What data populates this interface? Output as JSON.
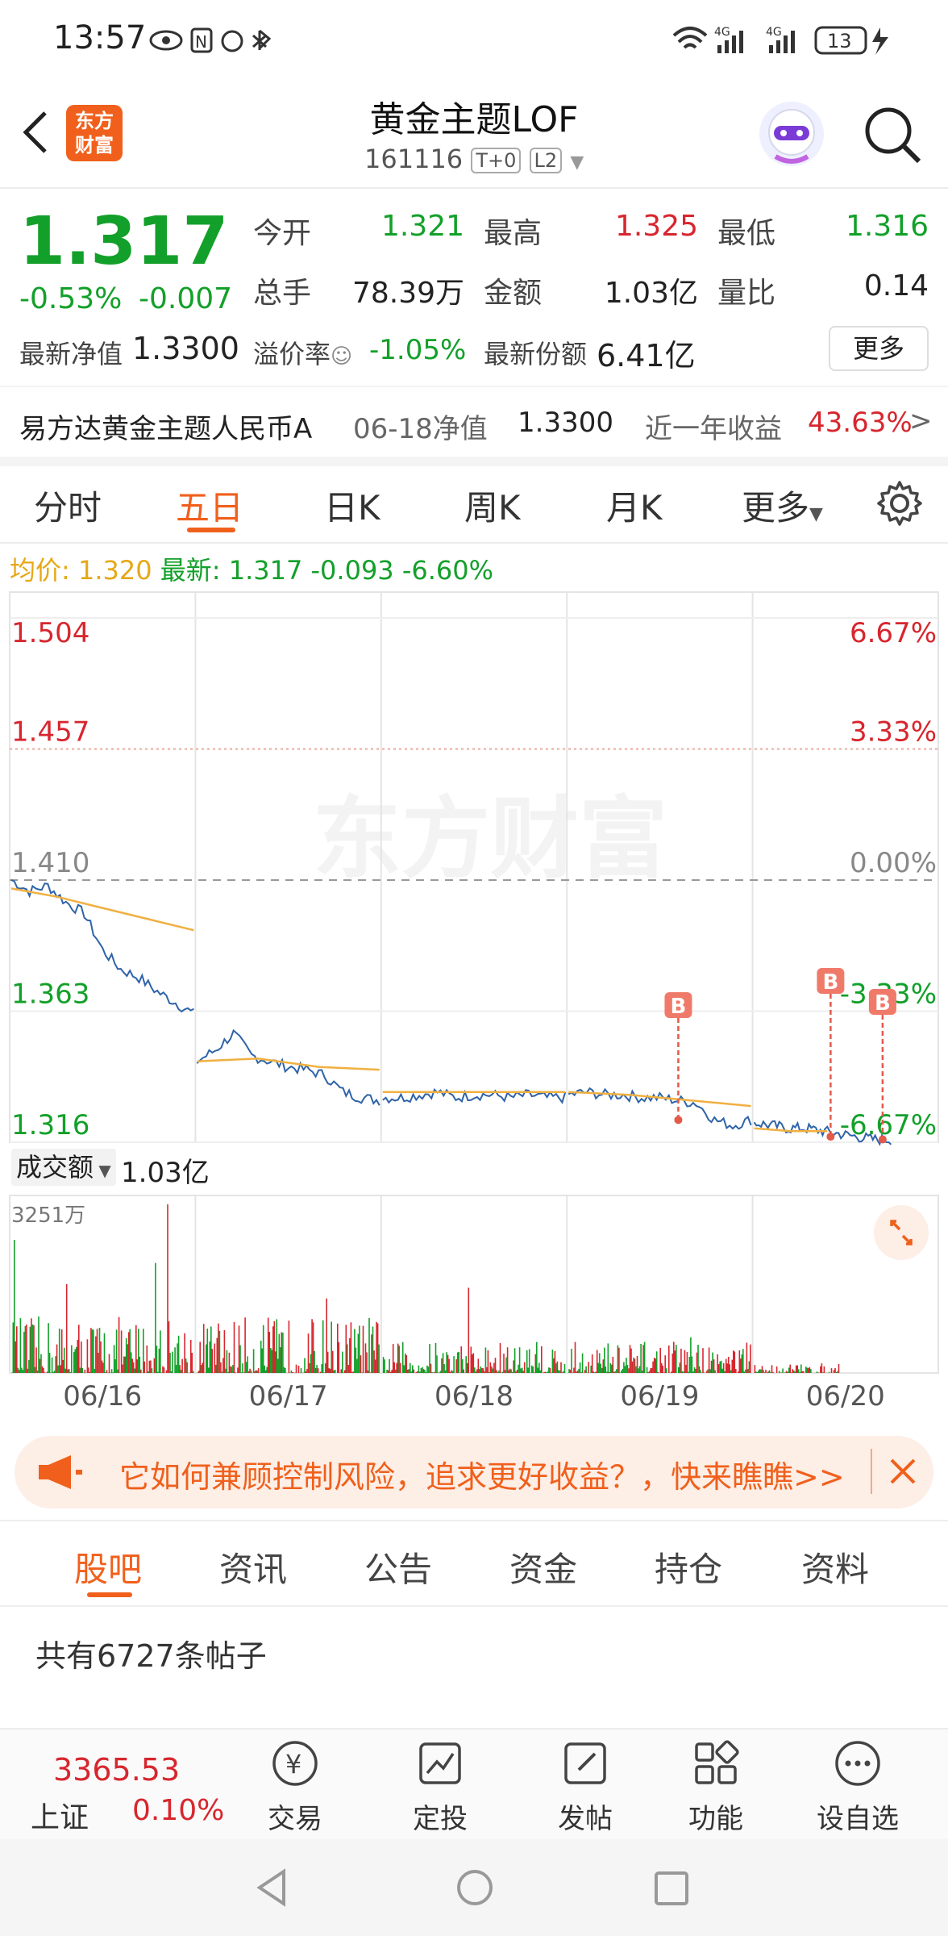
{
  "status_bar": {
    "time": "13:57",
    "battery": "13",
    "network_1": "4G",
    "network_2": "4G"
  },
  "header": {
    "title": "黄金主题LOF",
    "code": "161116",
    "tag_t0": "T+0",
    "tag_l2": "L2",
    "logo_line1": "东方",
    "logo_line2": "财富"
  },
  "quote": {
    "price": "1.317",
    "change_pct": "-0.53%",
    "change_abs": "-0.007",
    "open_label": "今开",
    "open": "1.321",
    "high_label": "最高",
    "high": "1.325",
    "low_label": "最低",
    "low": "1.316",
    "volume_label": "总手",
    "volume": "78.39万",
    "amount_label": "金额",
    "amount": "1.03亿",
    "ratio_label": "量比",
    "ratio": "0.14",
    "nav_label": "最新净值",
    "nav": "1.3300",
    "premium_label": "溢价率",
    "premium": "-1.05%",
    "shares_label": "最新份额",
    "shares": "6.41亿",
    "more_button": "更多"
  },
  "fund_info": {
    "name": "易方达黄金主题人民币A",
    "date_nav_label": "06-18净值",
    "date_nav": "1.3300",
    "year_return_label": "近一年收益",
    "year_return": "43.63%",
    "arrow": ">"
  },
  "chart_tabs": {
    "t1": "分时",
    "t2": "五日",
    "t3": "日K",
    "t4": "周K",
    "t5": "月K",
    "t6": "更多"
  },
  "chart_header": {
    "avg_label": "均价:",
    "avg": "1.320",
    "latest_label": "最新:",
    "latest": "1.317",
    "chg": "-0.093",
    "chg_pct": "-6.60%"
  },
  "chart_data": {
    "type": "line",
    "x_labels": [
      "06/16",
      "06/17",
      "06/18",
      "06/19",
      "06/20"
    ],
    "y_labels_left": [
      "1.504",
      "1.457",
      "1.410",
      "1.363",
      "1.316"
    ],
    "y_labels_right": [
      "6.67%",
      "3.33%",
      "0.00%",
      "-3.33%",
      "-6.67%"
    ],
    "ylim": [
      1.316,
      1.504
    ],
    "watermark": "东方财富",
    "markers": [
      "B",
      "B",
      "B"
    ],
    "series": [
      {
        "values": [
          1.41,
          1.406,
          1.408,
          1.402,
          1.398,
          1.385,
          1.378,
          1.375,
          1.37,
          1.366,
          1.362
        ]
      },
      {
        "values": [
          1.345,
          1.349,
          1.355,
          1.347,
          1.345,
          1.343,
          1.342,
          1.34,
          1.334,
          1.332,
          1.331
        ]
      },
      {
        "values": [
          1.332,
          1.332,
          1.333,
          1.334,
          1.332,
          1.333,
          1.333,
          1.332,
          1.333,
          1.332,
          1.332
        ]
      },
      {
        "values": [
          1.333,
          1.334,
          1.333,
          1.333,
          1.332,
          1.332,
          1.331,
          1.33,
          1.324,
          1.322,
          1.324
        ]
      },
      {
        "values": [
          1.323,
          1.322,
          1.321,
          1.321,
          1.32,
          1.319,
          1.318,
          1.317,
          1.317
        ]
      }
    ],
    "avg_series": [
      {
        "values": [
          1.407,
          1.404,
          1.4,
          1.396,
          1.392
        ]
      },
      {
        "values": [
          1.345,
          1.346,
          1.343,
          1.342
        ]
      },
      {
        "values": [
          1.334,
          1.334,
          1.334
        ]
      },
      {
        "values": [
          1.334,
          1.333,
          1.331,
          1.329
        ]
      },
      {
        "values": [
          1.321,
          1.32,
          1.32
        ]
      }
    ]
  },
  "volume": {
    "label": "成交额",
    "value": "1.03亿",
    "max_label": "3251万"
  },
  "banner": {
    "text": "它如何兼顾控制风险，追求更好收益？，快来瞧瞧>>"
  },
  "bottom_tabs": {
    "t1": "股吧",
    "t2": "资讯",
    "t3": "公告",
    "t4": "资金",
    "t5": "持仓",
    "t6": "资料"
  },
  "posts": {
    "count_text": "共有6727条帖子"
  },
  "dock": {
    "index_value": "3365.53",
    "index_name": "上证",
    "index_pct": "0.10%",
    "trade": "交易",
    "invest": "定投",
    "post": "发帖",
    "func": "功能",
    "watch": "设自选"
  }
}
